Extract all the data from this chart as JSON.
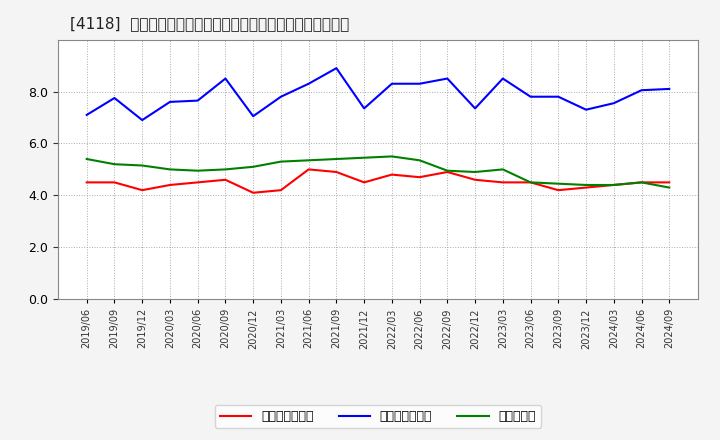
{
  "title": "[4118]  売上債権回転率、買入債務回転率、在庫回転率の推移",
  "x_labels": [
    "2019/06",
    "2019/09",
    "2019/12",
    "2020/03",
    "2020/06",
    "2020/09",
    "2020/12",
    "2021/03",
    "2021/06",
    "2021/09",
    "2021/12",
    "2022/03",
    "2022/06",
    "2022/09",
    "2022/12",
    "2023/03",
    "2023/06",
    "2023/09",
    "2023/12",
    "2024/03",
    "2024/06",
    "2024/09"
  ],
  "売上債権回転率": [
    4.5,
    4.5,
    4.2,
    4.4,
    4.5,
    4.6,
    4.1,
    4.2,
    5.0,
    4.9,
    4.5,
    4.8,
    4.7,
    4.9,
    4.6,
    4.5,
    4.5,
    4.2,
    4.3,
    4.4,
    4.5,
    4.5
  ],
  "買入債務回転率": [
    7.1,
    7.75,
    6.9,
    7.6,
    7.65,
    8.5,
    7.05,
    7.8,
    8.3,
    8.9,
    7.35,
    8.3,
    8.3,
    8.5,
    7.35,
    8.5,
    7.8,
    7.8,
    7.3,
    7.55,
    8.05,
    8.1
  ],
  "在庫回転率": [
    5.4,
    5.2,
    5.15,
    5.0,
    4.95,
    5.0,
    5.1,
    5.3,
    5.35,
    5.4,
    5.45,
    5.5,
    5.35,
    4.95,
    4.9,
    5.0,
    4.5,
    4.45,
    4.4,
    4.4,
    4.5,
    4.3
  ],
  "line_colors": {
    "売上債権回転率": "#ff0000",
    "買入債務回転率": "#0000ff",
    "在庫回転率": "#008000"
  },
  "ylim": [
    0,
    10
  ],
  "yticks": [
    0.0,
    2.0,
    4.0,
    6.0,
    8.0
  ],
  "background_color": "#f4f4f4",
  "plot_area_color": "#ffffff",
  "grid_color": "#aaaaaa",
  "title_fontsize": 11,
  "legend_labels": [
    "売上債権回転率",
    "買入債務回転率",
    "在庫回転率"
  ]
}
